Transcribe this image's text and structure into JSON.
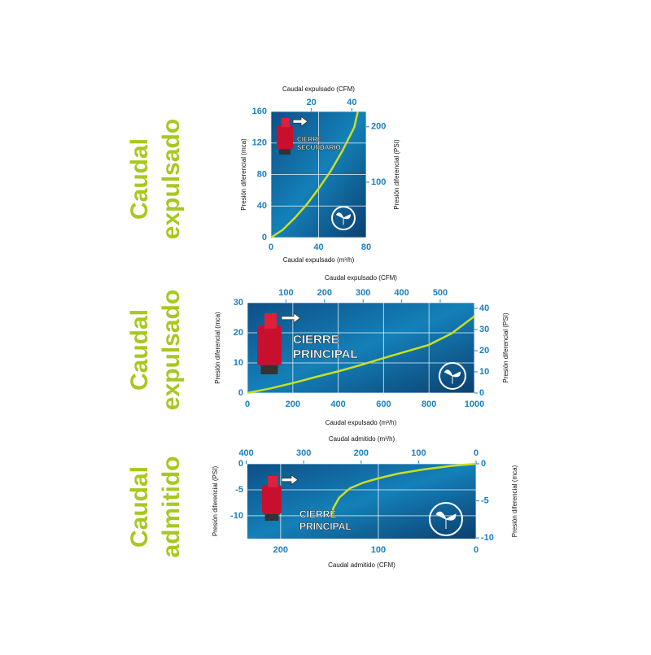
{
  "chart_data": [
    {
      "type": "line",
      "heading": [
        "Caudal",
        "expulsado"
      ],
      "x_label": "Caudal expulsado (m³/h)",
      "x2_label": "Caudal expulsado (CFM)",
      "y_label": "Presión diferencial (mca)",
      "y2_label": "Presión diferencial (PSI)",
      "annotation": [
        "CIERRE",
        "SECUNDARIO"
      ],
      "x": [
        0,
        10,
        20,
        30,
        40,
        50,
        60,
        70,
        73
      ],
      "values": [
        0,
        10,
        25,
        42,
        62,
        84,
        110,
        140,
        160
      ],
      "color": "#c8e020",
      "xlim": [
        0,
        80
      ],
      "xticks": [
        0,
        40,
        80
      ],
      "x2lim": [
        0,
        47.1
      ],
      "x2ticks": [
        20,
        40
      ],
      "ylim": [
        0,
        160
      ],
      "yticks": [
        0,
        40,
        80,
        120,
        160
      ],
      "y2lim": [
        0,
        227.6
      ],
      "y2ticks": [
        100,
        200
      ],
      "grid": true
    },
    {
      "type": "line",
      "heading": [
        "Caudal",
        "expulsado"
      ],
      "x_label": "Caudal expulsado (m³/h)",
      "x2_label": "Caudal expulsado (CFM)",
      "y_label": "Presión diferencial (mca)",
      "y2_label": "Presión diferencial (PSI)",
      "annotation": [
        "CIERRE",
        "PRINCIPAL"
      ],
      "x": [
        0,
        100,
        200,
        300,
        400,
        500,
        600,
        700,
        800,
        900,
        1000
      ],
      "values": [
        0,
        1.5,
        3.3,
        5.3,
        7.2,
        9.3,
        11.6,
        13.8,
        16.0,
        19.8,
        25.5
      ],
      "color": "#c8e020",
      "xlim": [
        0,
        1000
      ],
      "xticks": [
        0,
        200,
        400,
        600,
        800,
        1000
      ],
      "x2lim": [
        0,
        588.6
      ],
      "x2ticks": [
        100,
        200,
        300,
        400,
        500
      ],
      "ylim": [
        0,
        30
      ],
      "yticks": [
        0,
        10,
        20,
        30
      ],
      "y2lim": [
        0,
        42.7
      ],
      "y2ticks": [
        0,
        10,
        20,
        30,
        40
      ],
      "grid": true
    },
    {
      "type": "line",
      "heading": [
        "Caudal",
        "admitido"
      ],
      "x_label": "Caudal admitido (CFM)",
      "x2_label": "Caudal admitido (m³/h)",
      "y_label": "Presión diferencial (PSI)",
      "y2_label": "Presión diferencial (mca)",
      "annotation": [
        "CIERRE",
        "PRINCIPAL"
      ],
      "x": [
        148,
        146,
        140,
        129,
        115,
        100,
        80,
        54,
        25,
        0
      ],
      "values": [
        -10.2,
        -8.5,
        -6.5,
        -4.7,
        -3.6,
        -2.8,
        -1.9,
        -1.1,
        -0.4,
        0
      ],
      "color": "#c8e020",
      "xlim": [
        234,
        0
      ],
      "xticks": [
        200,
        100,
        0
      ],
      "x2lim": [
        398,
        0
      ],
      "x2ticks": [
        400,
        300,
        200,
        100,
        0
      ],
      "ylim": [
        -14.4,
        0
      ],
      "yticks": [
        0,
        -5,
        -10
      ],
      "y2lim": [
        -10.1,
        0
      ],
      "y2ticks": [
        0,
        -5,
        -10
      ],
      "grid": true
    }
  ]
}
